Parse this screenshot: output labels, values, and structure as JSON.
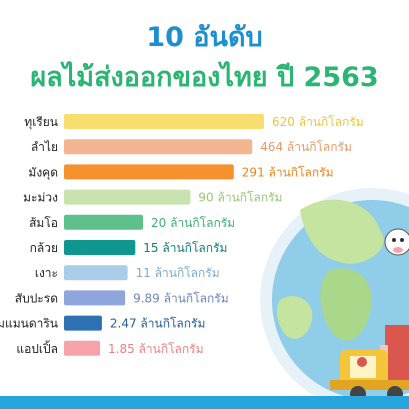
{
  "header": {
    "title_line1": "10 อันดับ",
    "title_line2": "ผลไม้ส่งออกของไทย ปี 2563"
  },
  "chart_data": {
    "type": "bar",
    "orientation": "horizontal",
    "unit": "ล้านกิโลกรัม",
    "categories": [
      "ทุเรียน",
      "ลำไย",
      "มังคุด",
      "มะม่วง",
      "ส้มโอ",
      "กล้วย",
      "เงาะ",
      "สับปะรด",
      "สัมแมนดาริน",
      "แอปเปิ้ล"
    ],
    "values": [
      620,
      464,
      291,
      90,
      20,
      15,
      11,
      9.89,
      2.47,
      1.85
    ],
    "value_labels": [
      "620",
      "464",
      "291",
      "90",
      "20",
      "15",
      "11",
      "9.89",
      "2.47",
      "1.85"
    ],
    "colors": [
      "#f7de6e",
      "#f4b691",
      "#f5922e",
      "#c8e3b0",
      "#5ec08b",
      "#0f968e",
      "#aacde9",
      "#8fa6dc",
      "#2e71b3",
      "#f5a3a8"
    ],
    "label_colors": [
      "#e8c63d",
      "#e59a6b",
      "#e8851d",
      "#9ac673",
      "#3fae73",
      "#0d8178",
      "#7ea9cf",
      "#6d85c0",
      "#235f9a",
      "#ec8087"
    ],
    "title": "10 อันดับ ผลไม้ส่งออกของไทย ปี 2563"
  }
}
